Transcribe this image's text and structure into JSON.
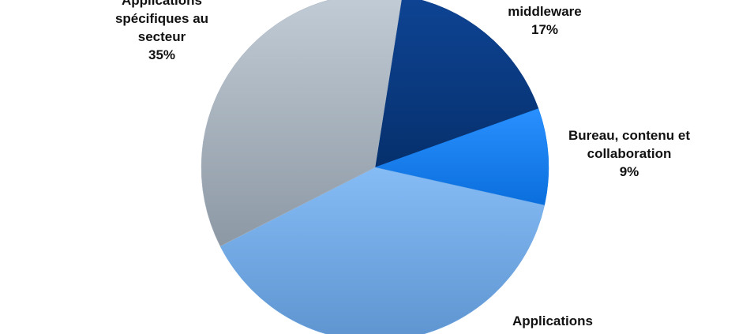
{
  "chart_data": {
    "type": "pie",
    "categories": [
      "middleware",
      "Bureau, contenu et collaboration",
      "Applications",
      "Applications spécifiques au secteur"
    ],
    "values": [
      17,
      9,
      39,
      35
    ],
    "value_labels": [
      "17%",
      "9%",
      null,
      "35%"
    ],
    "colors": [
      "#0b3a82",
      "#1682f2",
      "#74ace8",
      "#a9b5c1"
    ]
  }
}
